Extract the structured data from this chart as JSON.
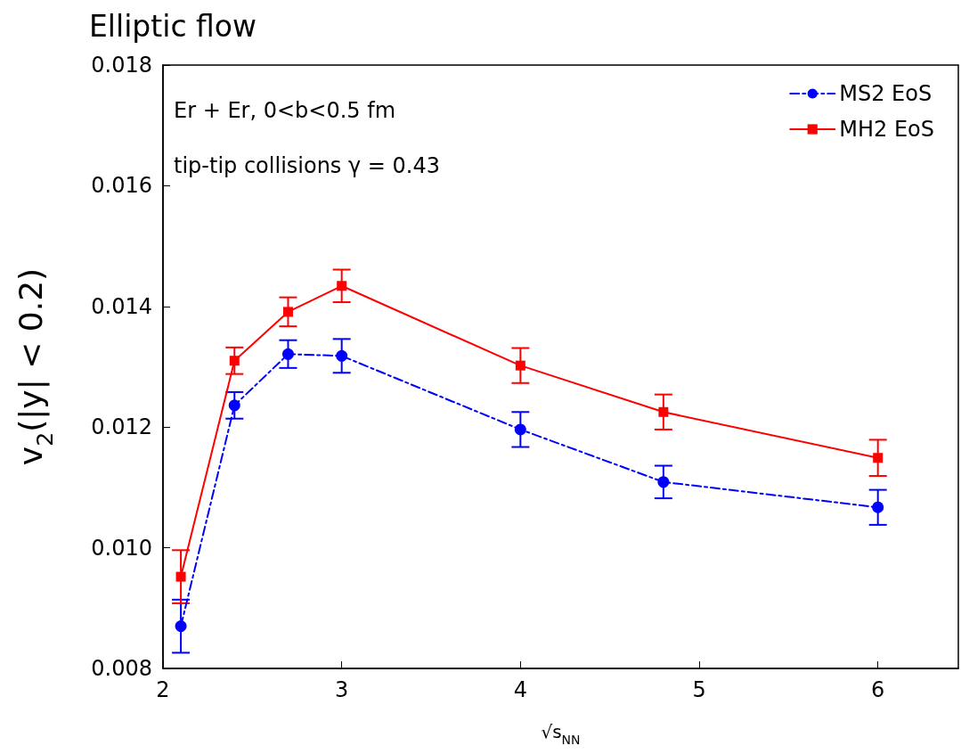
{
  "chart_data": {
    "type": "line",
    "title": "Elliptic flow",
    "xlabel": "√s$_{NN}$",
    "ylabel": "v$_{2}$(|y| < 0.2)",
    "annotations": [
      "Er + Er, 0<b<0.5 fm",
      "tip-tip collisions γ = 0.43"
    ],
    "x": [
      2.1,
      2.4,
      2.7,
      3,
      4,
      4.8,
      6
    ],
    "series": [
      {
        "name": "MS2 EoS",
        "color": "#0000ff",
        "marker": "circle",
        "line_style": "dashed",
        "values": [
          0.0087,
          0.01236,
          0.01321,
          0.01318,
          0.01196,
          0.01109,
          0.01067
        ],
        "errors": [
          0.00044,
          0.00022,
          0.00023,
          0.00028,
          0.00029,
          0.00027,
          0.00029
        ]
      },
      {
        "name": "MH2 EoS",
        "color": "#ff0000",
        "marker": "square",
        "line_style": "solid",
        "values": [
          0.00952,
          0.0131,
          0.01391,
          0.01434,
          0.01302,
          0.01225,
          0.01149
        ],
        "errors": [
          0.00044,
          0.00022,
          0.00024,
          0.00027,
          0.00029,
          0.00029,
          0.0003
        ]
      }
    ],
    "xlim": [
      2,
      6.45
    ],
    "xticks": [
      2,
      3,
      4,
      5,
      6
    ],
    "ylim": [
      0.008,
      0.018
    ],
    "yticks": [
      0.008,
      {
        "value": 0.01,
        "label": "0.010"
      },
      0.012,
      0.014,
      0.016,
      0.018
    ],
    "grid": false,
    "legend": "top right"
  }
}
